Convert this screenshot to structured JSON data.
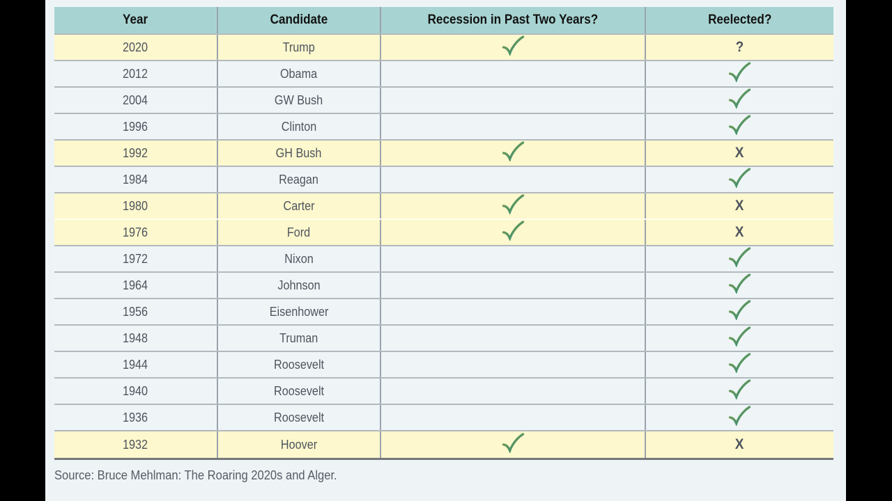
{
  "table": {
    "headers": [
      {
        "label": "Year"
      },
      {
        "label": "Candidate"
      },
      {
        "label": "Recession in Past Two Years?"
      },
      {
        "label": "Reelected?"
      }
    ],
    "rows": [
      {
        "year": "2020",
        "candidate": "Trump",
        "recession": "check",
        "reelected": "question",
        "highlighted": true
      },
      {
        "year": "2012",
        "candidate": "Obama",
        "recession": "none",
        "reelected": "check",
        "highlighted": false
      },
      {
        "year": "2004",
        "candidate": "GW Bush",
        "recession": "none",
        "reelected": "check",
        "highlighted": false
      },
      {
        "year": "1996",
        "candidate": "Clinton",
        "recession": "none",
        "reelected": "check",
        "highlighted": false
      },
      {
        "year": "1992",
        "candidate": "GH Bush",
        "recession": "check",
        "reelected": "x",
        "highlighted": true
      },
      {
        "year": "1984",
        "candidate": "Reagan",
        "recession": "none",
        "reelected": "check",
        "highlighted": false
      },
      {
        "year": "1980",
        "candidate": "Carter",
        "recession": "check",
        "reelected": "x",
        "highlighted": true
      },
      {
        "year": "1976",
        "candidate": "Ford",
        "recession": "check",
        "reelected": "x",
        "highlighted": true
      },
      {
        "year": "1972",
        "candidate": "Nixon",
        "recession": "none",
        "reelected": "check",
        "highlighted": false
      },
      {
        "year": "1964",
        "candidate": "Johnson",
        "recession": "none",
        "reelected": "check",
        "highlighted": false
      },
      {
        "year": "1956",
        "candidate": "Eisenhower",
        "recession": "none",
        "reelected": "check",
        "highlighted": false
      },
      {
        "year": "1948",
        "candidate": "Truman",
        "recession": "none",
        "reelected": "check",
        "highlighted": false
      },
      {
        "year": "1944",
        "candidate": "Roosevelt",
        "recession": "none",
        "reelected": "check",
        "highlighted": false
      },
      {
        "year": "1940",
        "candidate": "Roosevelt",
        "recession": "none",
        "reelected": "check",
        "highlighted": false
      },
      {
        "year": "1936",
        "candidate": "Roosevelt",
        "recession": "none",
        "reelected": "check",
        "highlighted": false
      },
      {
        "year": "1932",
        "candidate": "Hoover",
        "recession": "check",
        "reelected": "x",
        "highlighted": true
      }
    ]
  },
  "marks": {
    "x_label": "X",
    "question_label": "?",
    "check_icon": "check-icon"
  },
  "source_note": "Source: Bruce Mehlman: The Roaring 2020s and Alger.",
  "colors": {
    "content_bg": "#eef4f6",
    "header_bg": "#a7d4d2",
    "highlight_row_bg": "#fdf8cd",
    "row_bg": "#eff5f7",
    "header_text": "#121212",
    "row_text": "#4e545e",
    "check_green_start": "#85a04b",
    "check_green_end": "#2e8b78",
    "x_red": "#ee4459",
    "question_red": "#e93c4c",
    "grid_line": "#b2b9be",
    "column_line": "#9aa3ab",
    "bottom_border": "#73787c",
    "source_text": "#565b66"
  },
  "chart_data": {
    "type": "table",
    "title": "",
    "columns": [
      "Year",
      "Candidate",
      "Recession in Past Two Years?",
      "Reelected?"
    ],
    "rows": [
      [
        "2020",
        "Trump",
        "yes",
        "?"
      ],
      [
        "2012",
        "Obama",
        "no",
        "yes"
      ],
      [
        "2004",
        "GW Bush",
        "no",
        "yes"
      ],
      [
        "1996",
        "Clinton",
        "no",
        "yes"
      ],
      [
        "1992",
        "GH Bush",
        "yes",
        "no"
      ],
      [
        "1984",
        "Reagan",
        "no",
        "yes"
      ],
      [
        "1980",
        "Carter",
        "yes",
        "no"
      ],
      [
        "1976",
        "Ford",
        "yes",
        "no"
      ],
      [
        "1972",
        "Nixon",
        "no",
        "yes"
      ],
      [
        "1964",
        "Johnson",
        "no",
        "yes"
      ],
      [
        "1956",
        "Eisenhower",
        "no",
        "yes"
      ],
      [
        "1948",
        "Truman",
        "no",
        "yes"
      ],
      [
        "1944",
        "Roosevelt",
        "no",
        "yes"
      ],
      [
        "1940",
        "Roosevelt",
        "no",
        "yes"
      ],
      [
        "1936",
        "Roosevelt",
        "no",
        "yes"
      ],
      [
        "1932",
        "Hoover",
        "yes",
        "no"
      ]
    ],
    "layout_hints": "Rows where a recession occurred in the past two years are highlighted yellow; header row is teal; green check = yes, red X = no, red ? = unknown (2020).",
    "source": "Source: Bruce Mehlman: The Roaring 2020s and Alger."
  }
}
